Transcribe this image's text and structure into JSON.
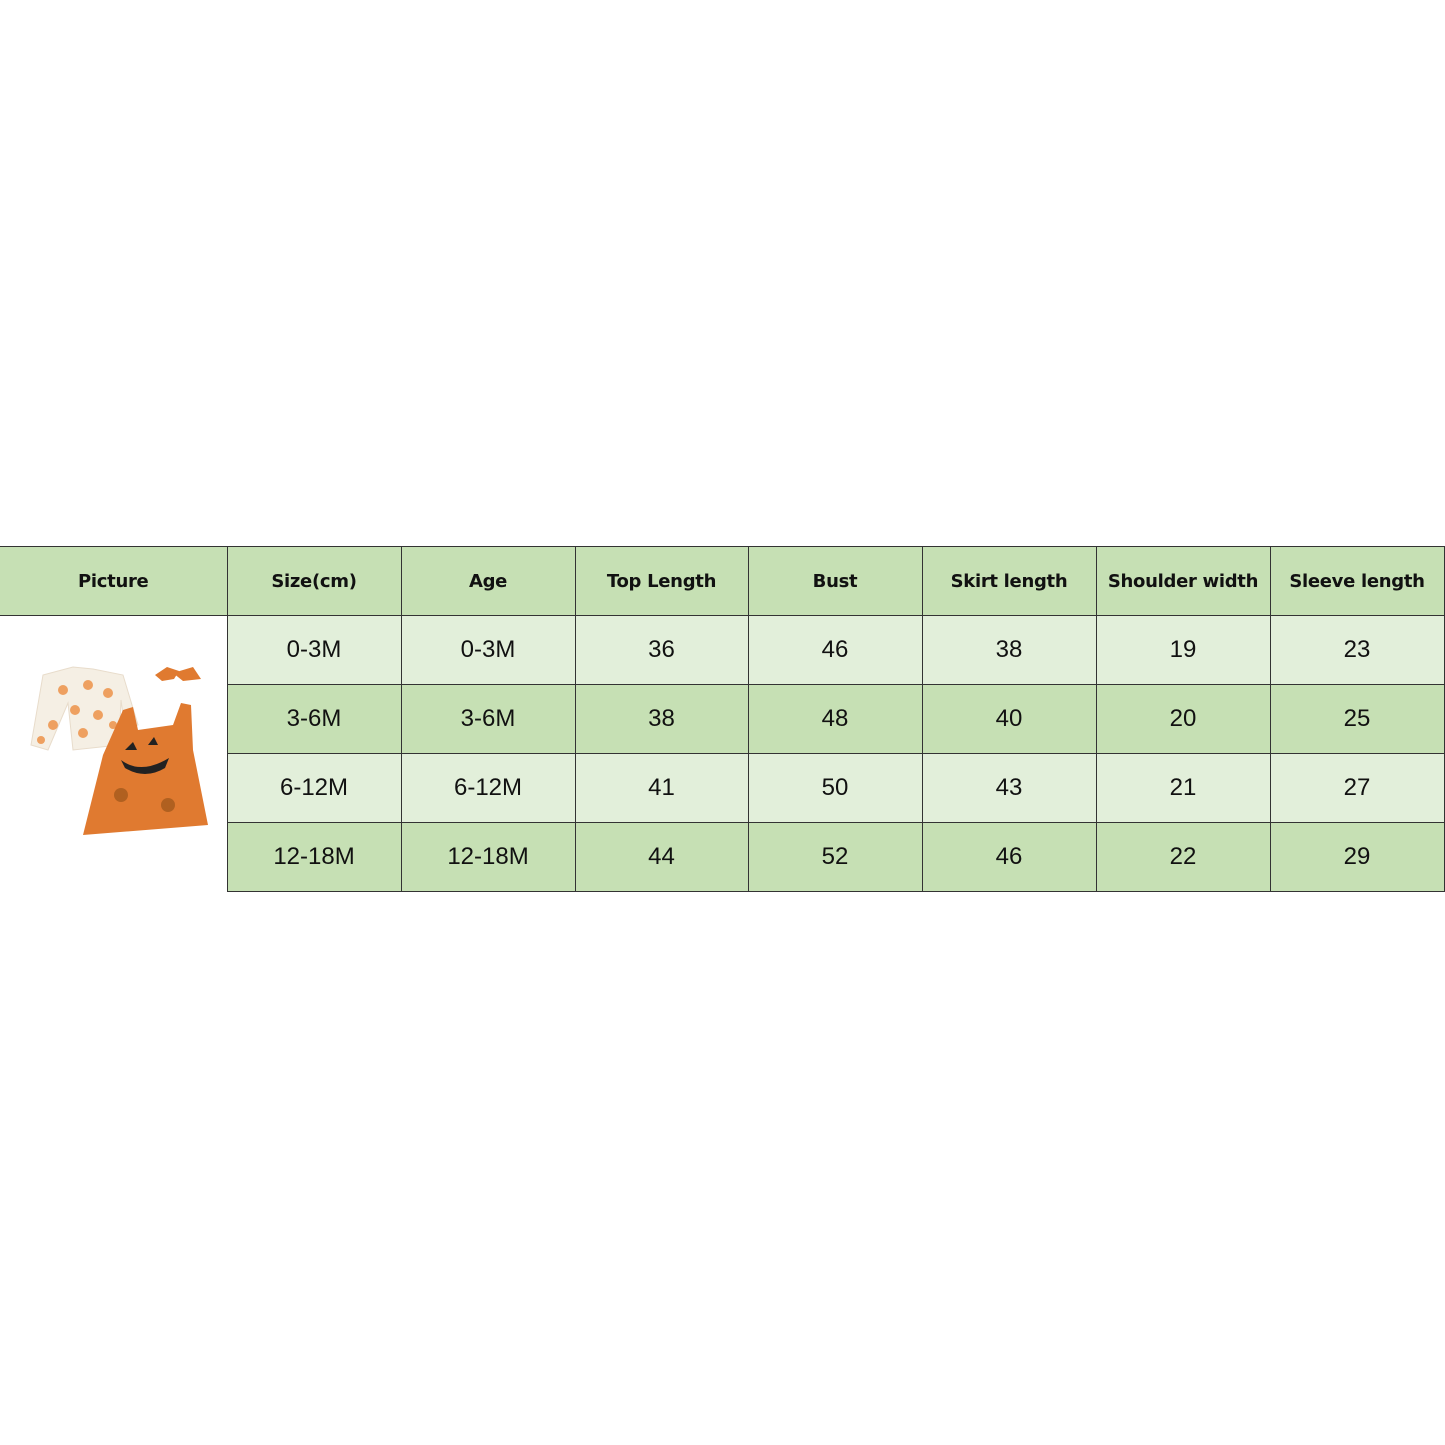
{
  "headers": [
    "Picture",
    "Size(cm)",
    "Age",
    "Top Length",
    "Bust",
    "Skirt length",
    "Shoulder width",
    "Sleeve length"
  ],
  "rows": [
    [
      "0-3M",
      "0-3M",
      "36",
      "46",
      "38",
      "19",
      "23"
    ],
    [
      "3-6M",
      "3-6M",
      "38",
      "48",
      "40",
      "20",
      "25"
    ],
    [
      "6-12M",
      "6-12M",
      "41",
      "50",
      "43",
      "21",
      "27"
    ],
    [
      "12-18M",
      "12-18M",
      "44",
      "52",
      "46",
      "22",
      "29"
    ]
  ],
  "colors": {
    "header": "#c6e0b4",
    "row_light": "#e2efda",
    "row_dark": "#c6e0b4",
    "dress": "#e07a30"
  },
  "picture_icon": "pumpkin-onesie-dress-outfit"
}
